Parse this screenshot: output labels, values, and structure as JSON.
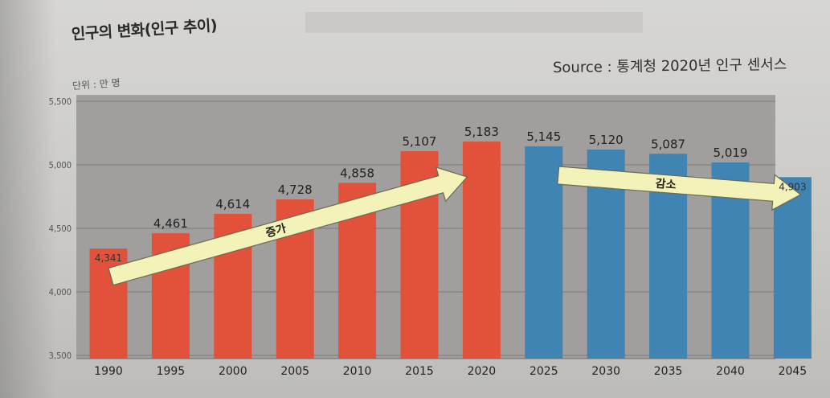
{
  "title": "인구의 변화(인구 추이)",
  "source": "Source : 통계청 2020년 인구 센서스",
  "unit": "단위 : 만 명",
  "chart_data": {
    "type": "bar",
    "title": "인구의 변화(인구 추이)",
    "xlabel": "",
    "ylabel": "단위 : 만 명",
    "ylim": [
      3500,
      5500
    ],
    "yticks": [
      "3,500",
      "4,000",
      "4,500",
      "5,000",
      "5,500"
    ],
    "ytick_values": [
      3500,
      4000,
      4500,
      5000,
      5500
    ],
    "grid": true,
    "categories": [
      "1990",
      "1995",
      "2000",
      "2005",
      "2010",
      "2015",
      "2020",
      "2025",
      "2030",
      "2035",
      "2040",
      "2045"
    ],
    "values": [
      4341,
      4461,
      4614,
      4728,
      4858,
      5107,
      5183,
      5145,
      5120,
      5087,
      5019,
      4903
    ],
    "value_labels": [
      "4,341",
      "4,461",
      "4,614",
      "4,728",
      "4,858",
      "5,107",
      "5,183",
      "5,145",
      "5,120",
      "5,087",
      "5,019",
      "4,903"
    ],
    "bar_colors": [
      "#e2513a",
      "#e2513a",
      "#e2513a",
      "#e2513a",
      "#e2513a",
      "#e2513a",
      "#e2513a",
      "#3f84b2",
      "#3f84b2",
      "#3f84b2",
      "#3f84b2",
      "#3f84b2"
    ],
    "annotations": [
      {
        "text": "증가",
        "from_category": "1990",
        "to_category": "2020"
      },
      {
        "text": "감소",
        "from_category": "2025",
        "to_category": "2045"
      }
    ]
  },
  "colors": {
    "increase": "#e2513a",
    "decrease": "#3f84b2",
    "plot_bg": "#9f9e9d",
    "arrow_fill": "#f3f2b8"
  }
}
